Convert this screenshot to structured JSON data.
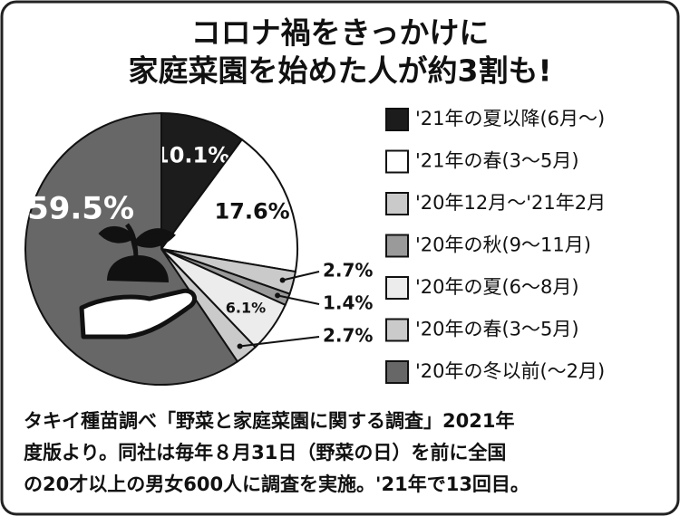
{
  "chart_data": {
    "type": "pie",
    "title": [
      "コロナ禍をきっかけに",
      "家庭菜園を始めた人が約3割も!"
    ],
    "categories": [
      "'21年の夏以降(6月〜)",
      "'21年の春(3〜5月)",
      "'20年12月〜'21年2月",
      "'20年の秋(9〜11月)",
      "'20年の夏(6〜8月)",
      "'20年の春(3〜5月)",
      "'20年の冬以前(〜2月)"
    ],
    "values": [
      10.1,
      17.6,
      2.7,
      1.4,
      6.1,
      2.7,
      59.5
    ],
    "value_labels": [
      "10.1%",
      "17.6%",
      "2.7%",
      "1.4%",
      "6.1%",
      "2.7%",
      "59.5%"
    ],
    "colors": [
      "#1c1c1c",
      "#ffffff",
      "#cacaca",
      "#9a9a9a",
      "#ececec",
      "#cacaca",
      "#676767"
    ],
    "note": [
      "タキイ種苗調べ「野菜と家庭菜園に関する調査」2021年",
      "度版より。同社は毎年８月31日（野菜の日）を前に全国",
      "の20才以上の男女600人に調査を実施。'21年で13回目。"
    ]
  }
}
